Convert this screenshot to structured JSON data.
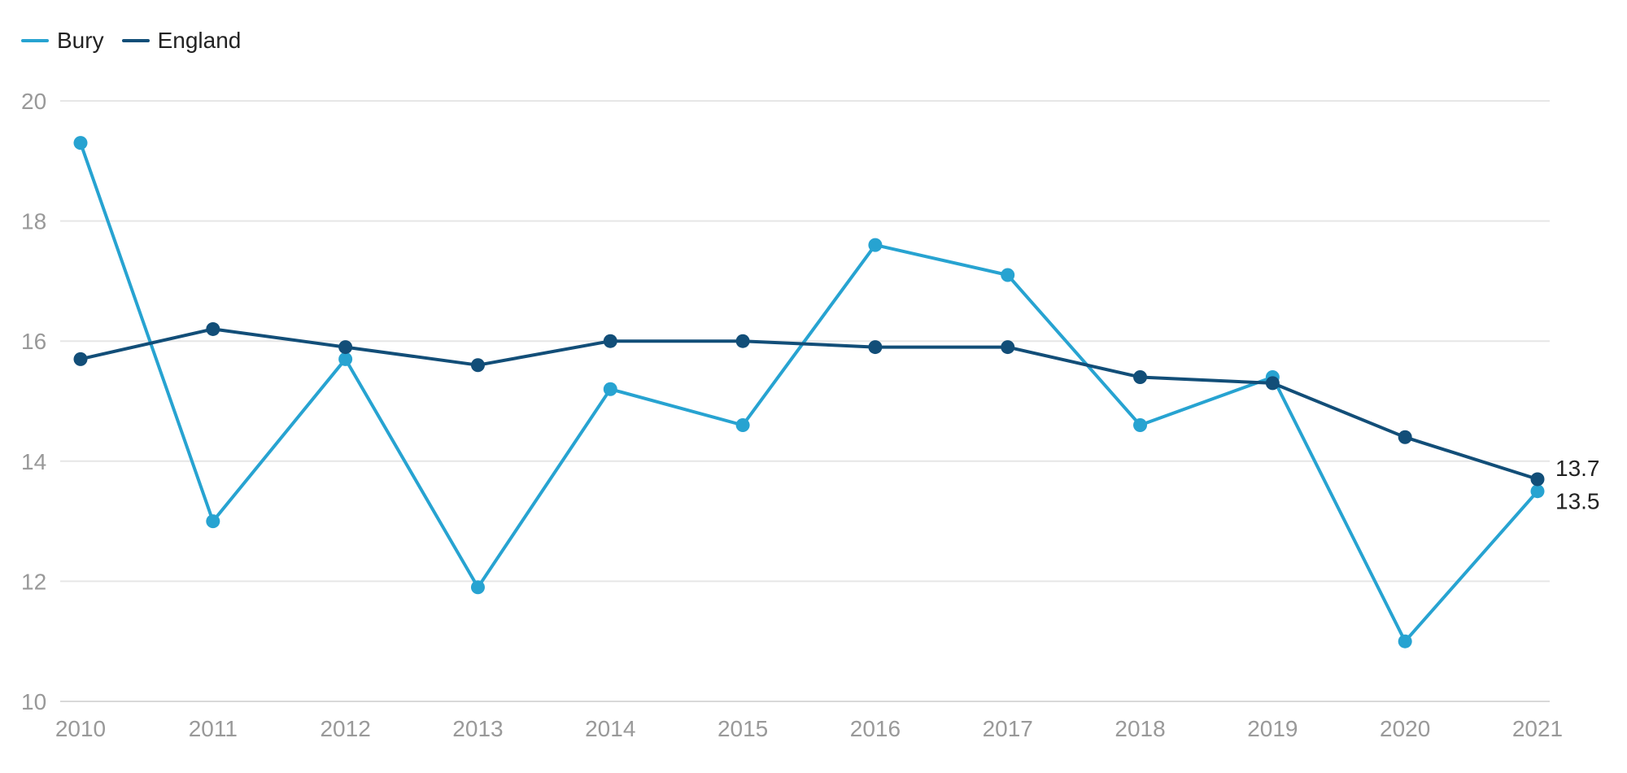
{
  "chart_data": {
    "type": "line",
    "x": [
      "2010",
      "2011",
      "2012",
      "2013",
      "2014",
      "2015",
      "2016",
      "2017",
      "2018",
      "2019",
      "2020",
      "2021"
    ],
    "series": [
      {
        "name": "Bury",
        "color": "#27a3d1",
        "values": [
          19.3,
          13.0,
          15.7,
          11.9,
          15.2,
          14.6,
          17.6,
          17.1,
          14.6,
          15.4,
          11.0,
          13.5
        ],
        "end_label": "13.5"
      },
      {
        "name": "England",
        "color": "#124e78",
        "values": [
          15.7,
          16.2,
          15.9,
          15.6,
          16.0,
          16.0,
          15.9,
          15.9,
          15.4,
          15.3,
          14.4,
          13.7
        ],
        "end_label": "13.7"
      }
    ],
    "ylim": [
      10,
      20
    ],
    "yticks": [
      "10",
      "12",
      "14",
      "16",
      "18",
      "20"
    ],
    "grid": true,
    "legend_position": "top-left",
    "xlabel": "",
    "ylabel": ""
  }
}
